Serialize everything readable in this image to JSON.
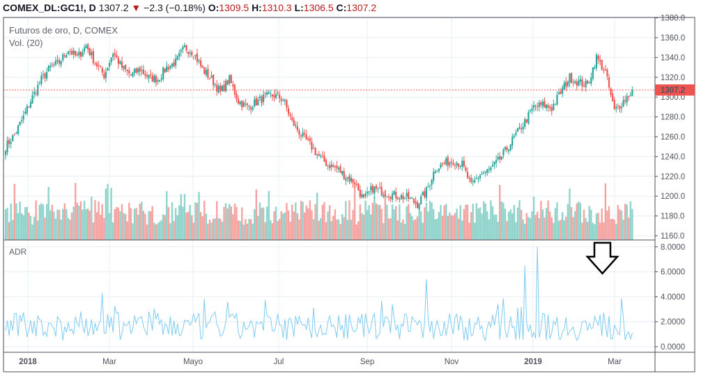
{
  "header": {
    "symbol": "COMEX_DL:GC1!, D",
    "last": "1307.2",
    "change": "−2.3 (−0.18%)",
    "o_label": "O:",
    "o": "1309.5",
    "h_label": "H:",
    "h": "1310.3",
    "l_label": "L:",
    "l": "1306.5",
    "c_label": "C:",
    "c": "1307.2"
  },
  "legend": {
    "title": "Futuros de oro, D, COMEX",
    "volume": "Vol. (20)",
    "adr": "ADR"
  },
  "colors": {
    "up": "#26a69a",
    "down": "#ef5350",
    "vol_up": "#8fd3cb",
    "vol_down": "#f4a3a1",
    "adr": "#7ecbf0",
    "grid": "#e6eff5"
  },
  "chart_data": {
    "type": "candlestick",
    "title": "Futuros de oro, D, COMEX",
    "price_axis": {
      "min": 1160,
      "max": 1380,
      "ticks": [
        "1160.0",
        "1180.0",
        "1200.0",
        "1220.0",
        "1240.0",
        "1260.0",
        "1280.0",
        "1300.0",
        "1320.0",
        "1340.0",
        "1360.0",
        "1380.0"
      ]
    },
    "last_price": "1307.2",
    "weekly_closes": [
      1250,
      1262,
      1280,
      1300,
      1318,
      1330,
      1335,
      1348,
      1340,
      1352,
      1335,
      1322,
      1345,
      1330,
      1322,
      1328,
      1320,
      1318,
      1330,
      1335,
      1350,
      1345,
      1328,
      1318,
      1305,
      1318,
      1296,
      1290,
      1295,
      1300,
      1302,
      1298,
      1275,
      1262,
      1252,
      1240,
      1232,
      1228,
      1220,
      1214,
      1196,
      1208,
      1205,
      1202,
      1200,
      1198,
      1192,
      1205,
      1228,
      1233,
      1236,
      1232,
      1210,
      1222,
      1226,
      1235,
      1248,
      1262,
      1275,
      1290,
      1292,
      1289,
      1305,
      1320,
      1315,
      1312,
      1340,
      1325,
      1286,
      1296,
      1307
    ],
    "adr_axis": {
      "min": 0,
      "max": 8,
      "ticks": [
        "0.0000",
        "2.0000",
        "4.0000",
        "6.0000",
        "8.0000"
      ]
    },
    "adr_spikes": [
      {
        "month": "Mar 2018",
        "value": 4.3
      },
      {
        "month": "Oct 2018",
        "value": 5.4
      },
      {
        "month": "Dec 2018",
        "value": 6.5
      },
      {
        "month": "Jan 2019",
        "value": 8.0
      }
    ],
    "time_labels": [
      "2018",
      "Mar",
      "Mayo",
      "Jul",
      "Sep",
      "Nov",
      "2019",
      "Mar"
    ]
  }
}
